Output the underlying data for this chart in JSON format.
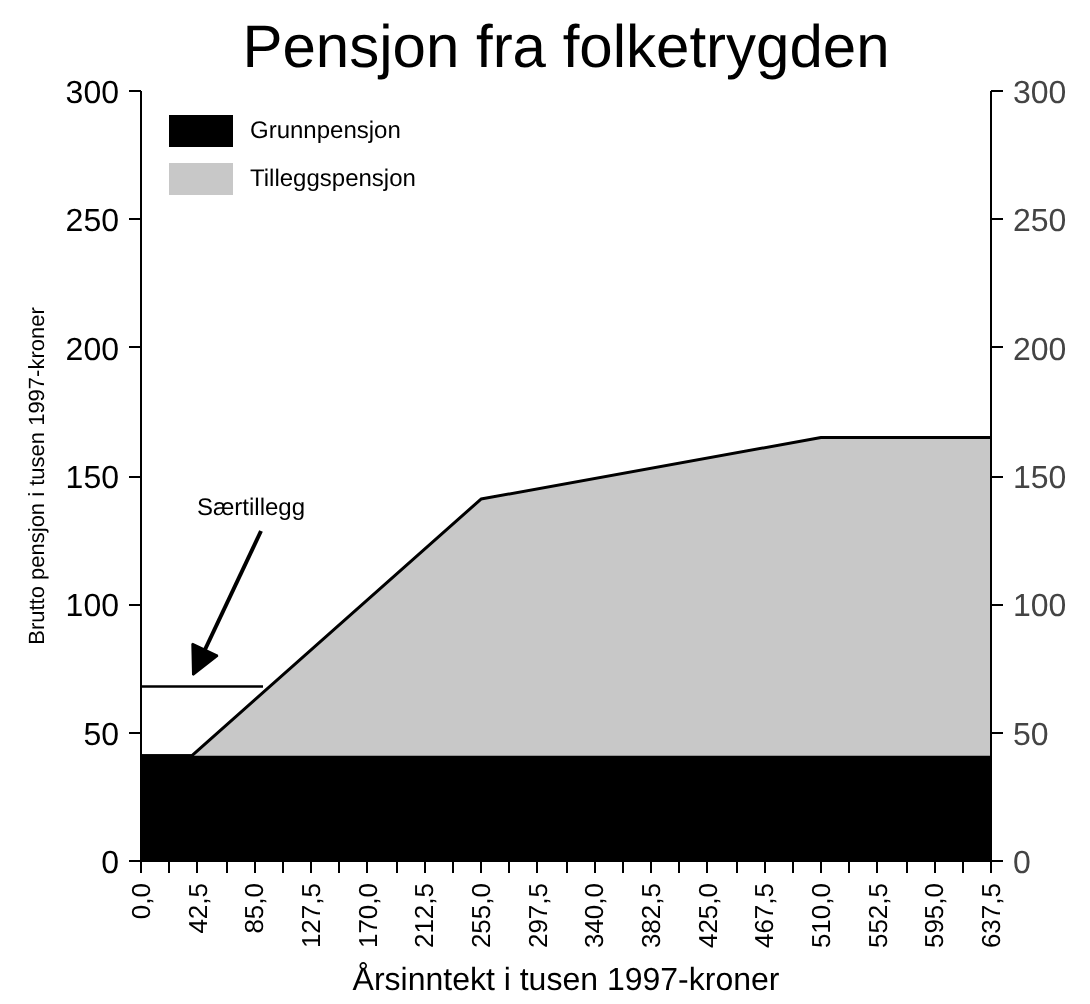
{
  "chart_data": {
    "type": "area",
    "stacked": true,
    "title": "Pensjon fra folketrygden",
    "xlabel": "Årsinntekt i tusen 1997-kroner",
    "ylabel": "Brutto pensjon i tusen 1997-kroner",
    "x": [
      0,
      38,
      255,
      510,
      637.5
    ],
    "series": [
      {
        "name": "Grunnpensjon",
        "color": "#000000",
        "values": [
          41,
          41,
          41,
          41,
          41
        ]
      },
      {
        "name": "Tilleggspensjon",
        "color": "#c8c8c8",
        "values": [
          0,
          0,
          100,
          124,
          124
        ]
      },
      {
        "type": "line",
        "color": "#000000",
        "x": [
          0,
          91.5
        ],
        "values": [
          68,
          68
        ]
      }
    ],
    "annotations": [
      "Særtillegg"
    ],
    "xlim": [
      0,
      637.5
    ],
    "ylim": [
      0,
      300
    ],
    "y2lim": [
      0,
      300
    ],
    "xticks": [
      {
        "value": 0,
        "label": "0,0"
      },
      {
        "value": 21.25,
        "label": null
      },
      {
        "value": 42.5,
        "label": "42,5"
      },
      {
        "value": 63.75,
        "label": null
      },
      {
        "value": 85,
        "label": "85,0"
      },
      {
        "value": 106.25,
        "label": null
      },
      {
        "value": 127.5,
        "label": "127,5"
      },
      {
        "value": 148.75,
        "label": null
      },
      {
        "value": 170,
        "label": "170,0"
      },
      {
        "value": 191.25,
        "label": null
      },
      {
        "value": 212.5,
        "label": "212,5"
      },
      {
        "value": 233.75,
        "label": null
      },
      {
        "value": 255,
        "label": "255,0"
      },
      {
        "value": 276.25,
        "label": null
      },
      {
        "value": 297.5,
        "label": "297,5"
      },
      {
        "value": 318.75,
        "label": null
      },
      {
        "value": 340,
        "label": "340,0"
      },
      {
        "value": 361.25,
        "label": null
      },
      {
        "value": 382.5,
        "label": "382,5"
      },
      {
        "value": 403.75,
        "label": null
      },
      {
        "value": 425,
        "label": "425,0"
      },
      {
        "value": 446.25,
        "label": null
      },
      {
        "value": 467.5,
        "label": "467,5"
      },
      {
        "value": 488.75,
        "label": null
      },
      {
        "value": 510,
        "label": "510,0"
      },
      {
        "value": 531.25,
        "label": null
      },
      {
        "value": 552.5,
        "label": "552,5"
      },
      {
        "value": 573.75,
        "label": null
      },
      {
        "value": 595,
        "label": "595,0"
      },
      {
        "value": 616.25,
        "label": null
      },
      {
        "value": 637.5,
        "label": "637,5"
      }
    ],
    "yticks": [
      0,
      50,
      100,
      150,
      200,
      250,
      300
    ],
    "y2ticks": [
      0,
      50,
      100,
      150,
      200,
      250,
      300
    ],
    "grid": false,
    "legend": "top left"
  }
}
